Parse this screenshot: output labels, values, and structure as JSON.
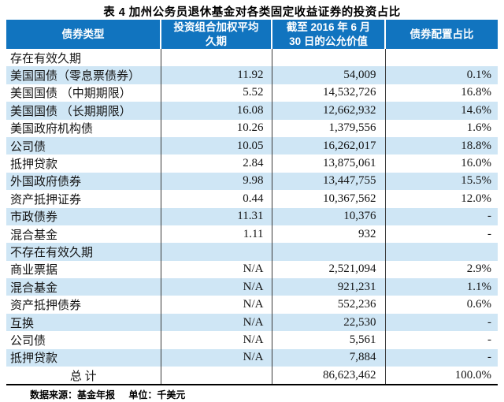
{
  "title": "表 4 加州公务员退休基金对各类固定收益证券的投资占比",
  "table": {
    "columns": [
      "债券类型",
      "投资组合加权平均久期",
      "截至 2016 年 6 月 30 日的公允价值",
      "债券配置占比"
    ],
    "rows": [
      {
        "section": true,
        "cells": [
          "存在有效久期",
          "",
          "",
          ""
        ]
      },
      {
        "cells": [
          "美国国债（零息票债券）",
          "11.92",
          "54,009",
          "0.1%"
        ]
      },
      {
        "cells": [
          "美国国债 （中期期限）",
          "5.52",
          "14,532,726",
          "16.8%"
        ]
      },
      {
        "cells": [
          "美国国债 （长期期限）",
          "16.08",
          "12,662,932",
          "14.6%"
        ]
      },
      {
        "cells": [
          "美国政府机构债",
          "10.26",
          "1,379,556",
          "1.6%"
        ]
      },
      {
        "cells": [
          "公司债",
          "10.05",
          "16,262,017",
          "18.8%"
        ]
      },
      {
        "cells": [
          "抵押贷款",
          "2.84",
          "13,875,061",
          "16.0%"
        ]
      },
      {
        "cells": [
          "外国政府债券",
          "9.98",
          "13,447,755",
          "15.5%"
        ]
      },
      {
        "cells": [
          "资产抵押证券",
          "0.44",
          "10,367,562",
          "12.0%"
        ]
      },
      {
        "cells": [
          "市政债券",
          "11.31",
          "10,376",
          "-"
        ]
      },
      {
        "cells": [
          "混合基金",
          "1.11",
          "932",
          "-"
        ]
      },
      {
        "section": true,
        "cells": [
          "不存在有效久期",
          "",
          "",
          ""
        ]
      },
      {
        "cells": [
          "商业票据",
          "N/A",
          "2,521,094",
          "2.9%"
        ]
      },
      {
        "cells": [
          "混合基金",
          "N/A",
          "921,231",
          "1.1%"
        ]
      },
      {
        "cells": [
          "资产抵押债券",
          "N/A",
          "552,236",
          "0.6%"
        ]
      },
      {
        "cells": [
          "互换",
          "N/A",
          "22,530",
          "-"
        ]
      },
      {
        "cells": [
          "公司债",
          "N/A",
          "5,561",
          "-"
        ]
      },
      {
        "cells": [
          "抵押贷款",
          "N/A",
          "7,884",
          "-"
        ]
      },
      {
        "total": true,
        "cells": [
          "总 计",
          "",
          "86,623,462",
          "100.0%"
        ]
      }
    ]
  },
  "footer": {
    "source": "数据来源：基金年报",
    "unit": "单位：千美元"
  },
  "colors": {
    "header_bg": "#1174bf",
    "stripe": "#cfe6f5",
    "header_text": "#ffffff"
  }
}
